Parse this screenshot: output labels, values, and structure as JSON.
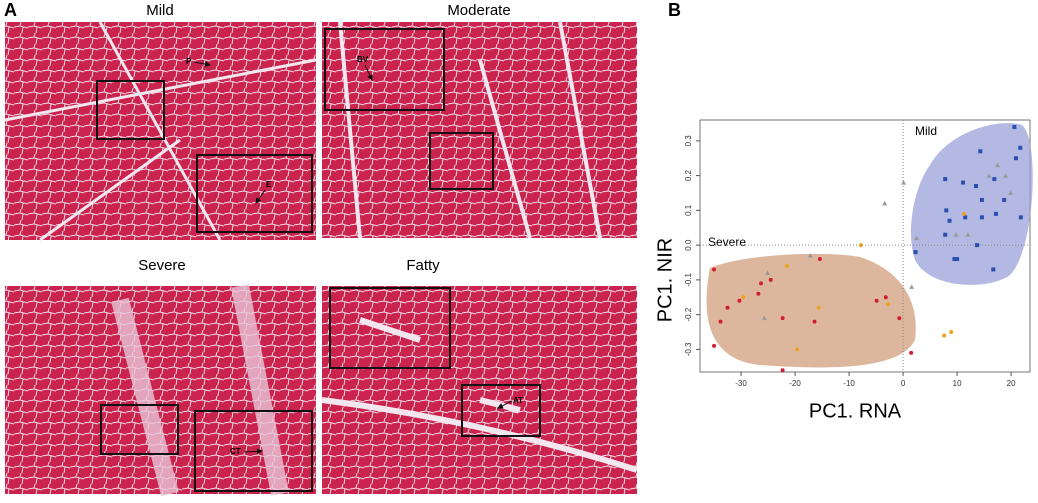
{
  "figure": {
    "panel_a": {
      "label": "A",
      "images": [
        {
          "title": "Mild",
          "annotations": [
            "P",
            "E"
          ]
        },
        {
          "title": "Moderate",
          "annotations": [
            "BV"
          ]
        },
        {
          "title": "Severe",
          "annotations": [
            "CT"
          ]
        },
        {
          "title": "Fatty",
          "annotations": [
            "AT"
          ]
        }
      ]
    },
    "panel_b": {
      "label": "B"
    }
  },
  "chart_data": {
    "type": "scatter",
    "xlabel": "PC1. RNA",
    "ylabel": "PC1. NIR",
    "annotations": [
      "Mild",
      "Severe"
    ],
    "xlim": [
      -37.6,
      23.5
    ],
    "ylim": [
      -0.365,
      0.36
    ],
    "xticks": [
      -30,
      -20,
      -10,
      0,
      10,
      20
    ],
    "yticks": [
      -0.3,
      -0.2,
      -0.1,
      {
        "value": 0,
        "label": "0.0"
      },
      0.1,
      0.2,
      0.3
    ],
    "series": [
      {
        "color": "#2a4fb0",
        "marker": "square",
        "x": [
          20.6,
          21.7,
          20.9,
          14.3,
          7.8,
          11.1,
          13.5,
          16.9,
          21.8,
          18.7,
          14.6,
          17.2,
          14.6,
          8.0,
          11.5,
          7.8,
          13.7,
          2.3,
          9.5,
          10.0,
          16.7,
          8.6
        ],
        "y": [
          0.34,
          0.28,
          0.25,
          0.27,
          0.19,
          0.18,
          0.17,
          0.19,
          0.08,
          0.13,
          0.13,
          0.09,
          0.08,
          0.1,
          0.08,
          0.03,
          0.0,
          -0.02,
          -0.04,
          -0.04,
          -0.07,
          0.07
        ]
      },
      {
        "color": "#9a9a9a",
        "marker": "triangle",
        "x": [
          0.1,
          -3.4,
          15.9,
          19.0,
          19.9,
          9.8,
          2.5,
          -17.2,
          -25.1,
          -25.7,
          1.6,
          17.5,
          12.0
        ],
        "y": [
          0.18,
          0.12,
          0.2,
          0.2,
          0.15,
          0.03,
          0.02,
          -0.03,
          -0.08,
          -0.21,
          -0.12,
          0.23,
          0.03
        ]
      },
      {
        "color": "#f0a020",
        "marker": "circle",
        "x": [
          11.3,
          -7.8,
          -21.5,
          -29.6,
          -15.6,
          -2.8,
          8.9,
          7.6,
          -19.6
        ],
        "y": [
          0.09,
          0.0,
          -0.06,
          -0.15,
          -0.18,
          -0.17,
          -0.25,
          -0.26,
          -0.3
        ]
      },
      {
        "color": "#d02030",
        "marker": "circle",
        "x": [
          -35.0,
          -15.4,
          -26.3,
          -30.3,
          -26.8,
          -32.5,
          -33.8,
          -24.5,
          -35.0,
          -22.3,
          -4.9,
          -3.2,
          -0.7,
          1.5,
          -22.3,
          -16.4
        ],
        "y": [
          -0.07,
          -0.04,
          -0.11,
          -0.16,
          -0.14,
          -0.18,
          -0.22,
          -0.1,
          -0.29,
          -0.21,
          -0.16,
          -0.15,
          -0.21,
          -0.31,
          -0.36,
          -0.22
        ]
      }
    ]
  }
}
